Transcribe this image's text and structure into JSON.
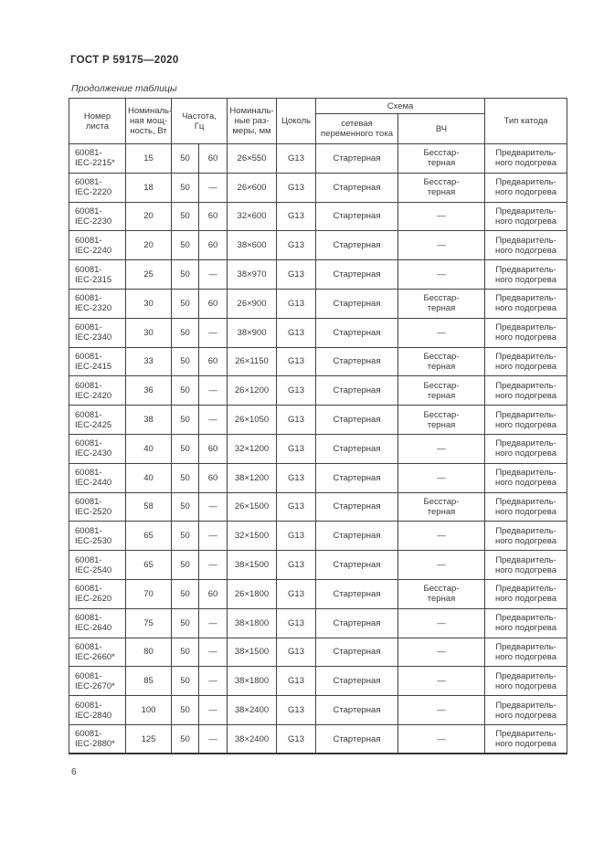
{
  "page": {
    "header_title": "ГОСТ Р 59175—2020",
    "table_caption": "Продолжение таблицы",
    "page_number": "6"
  },
  "table": {
    "headers": {
      "sheet_number": "Номер\nлиста",
      "power": "Номиналь-\nная мощ-\nность, Вт",
      "frequency": "Частота,\nГц",
      "dimensions": "Номиналь-\nные раз-\nмеры, мм",
      "cap": "Цоколь",
      "scheme": "Схема",
      "scheme_mains": "сетевая\nпеременного тока",
      "scheme_hf": "ВЧ",
      "cathode_type": "Тип катода"
    },
    "rows": [
      {
        "sheet": "60081-\nIEC-2215*",
        "power": "15",
        "f50": "50",
        "f60": "60",
        "dim": "26×550",
        "cap": "G13",
        "mains": "Стартерная",
        "hf": "Бесстар-\nтерная",
        "cathode": "Предваритель-\nного подогрева"
      },
      {
        "sheet": "60081-\nIEC-2220",
        "power": "18",
        "f50": "50",
        "f60": "—",
        "dim": "26×600",
        "cap": "G13",
        "mains": "Стартерная",
        "hf": "Бесстар-\nтерная",
        "cathode": "Предваритель-\nного подогрева"
      },
      {
        "sheet": "60081-\nIEC-2230",
        "power": "20",
        "f50": "50",
        "f60": "60",
        "dim": "32×600",
        "cap": "G13",
        "mains": "Стартерная",
        "hf": "—",
        "cathode": "Предваритель-\nного подогрева"
      },
      {
        "sheet": "60081-\nIEC-2240",
        "power": "20",
        "f50": "50",
        "f60": "60",
        "dim": "38×600",
        "cap": "G13",
        "mains": "Стартерная",
        "hf": "—",
        "cathode": "Предваритель-\nного подогрева"
      },
      {
        "sheet": "60081-\nIEC-2315",
        "power": "25",
        "f50": "50",
        "f60": "—",
        "dim": "38×970",
        "cap": "G13",
        "mains": "Стартерная",
        "hf": "—",
        "cathode": "Предваритель-\nного подогрева"
      },
      {
        "sheet": "60081-\nIEC-2320",
        "power": "30",
        "f50": "50",
        "f60": "60",
        "dim": "26×900",
        "cap": "G13",
        "mains": "Стартерная",
        "hf": "Бесстар-\nтерная",
        "cathode": "Предваритель-\nного подогрева"
      },
      {
        "sheet": "60081-\nIEC-2340",
        "power": "30",
        "f50": "50",
        "f60": "—",
        "dim": "38×900",
        "cap": "G13",
        "mains": "Стартерная",
        "hf": "—",
        "cathode": "Предваритель-\nного подогрева"
      },
      {
        "sheet": "60081-\nIEC-2415",
        "power": "33",
        "f50": "50",
        "f60": "60",
        "dim": "26×1150",
        "cap": "G13",
        "mains": "Стартерная",
        "hf": "Бесстар-\nтерная",
        "cathode": "Предваритель-\nного подогрева"
      },
      {
        "sheet": "60081-\nIEC-2420",
        "power": "36",
        "f50": "50",
        "f60": "—",
        "dim": "26×1200",
        "cap": "G13",
        "mains": "Стартерная",
        "hf": "Бесстар-\nтерная",
        "cathode": "Предваритель-\nного подогрева"
      },
      {
        "sheet": "60081-\nIEC-2425",
        "power": "38",
        "f50": "50",
        "f60": "—",
        "dim": "26×1050",
        "cap": "G13",
        "mains": "Стартерная",
        "hf": "Бесстар-\nтерная",
        "cathode": "Предваритель-\nного подогрева"
      },
      {
        "sheet": "60081-\nIEC-2430",
        "power": "40",
        "f50": "50",
        "f60": "60",
        "dim": "32×1200",
        "cap": "G13",
        "mains": "Стартерная",
        "hf": "—",
        "cathode": "Предваритель-\nного подогрева"
      },
      {
        "sheet": "60081-\nIEC-2440",
        "power": "40",
        "f50": "50",
        "f60": "60",
        "dim": "38×1200",
        "cap": "G13",
        "mains": "Стартерная",
        "hf": "—",
        "cathode": "Предваритель-\nного подогрева"
      },
      {
        "sheet": "60081-\nIEC-2520",
        "power": "58",
        "f50": "50",
        "f60": "—",
        "dim": "26×1500",
        "cap": "G13",
        "mains": "Стартерная",
        "hf": "Бесстар-\nтерная",
        "cathode": "Предваритель-\nного подогрева"
      },
      {
        "sheet": "60081-\nIEC-2530",
        "power": "65",
        "f50": "50",
        "f60": "—",
        "dim": "32×1500",
        "cap": "G13",
        "mains": "Стартерная",
        "hf": "—",
        "cathode": "Предваритель-\nного подогрева"
      },
      {
        "sheet": "60081-\nIEC-2540",
        "power": "65",
        "f50": "50",
        "f60": "—",
        "dim": "38×1500",
        "cap": "G13",
        "mains": "Стартерная",
        "hf": "—",
        "cathode": "Предваритель-\nного подогрева"
      },
      {
        "sheet": "60081-\nIEC-2620",
        "power": "70",
        "f50": "50",
        "f60": "60",
        "dim": "26×1800",
        "cap": "G13",
        "mains": "Стартерная",
        "hf": "Бесстар-\nтерная",
        "cathode": "Предваритель-\nного подогрева"
      },
      {
        "sheet": "60081-\nIEC-2640",
        "power": "75",
        "f50": "50",
        "f60": "—",
        "dim": "38×1800",
        "cap": "G13",
        "mains": "Стартерная",
        "hf": "—",
        "cathode": "Предваритель-\nного подогрева"
      },
      {
        "sheet": "60081-\nIEC-2660*",
        "power": "80",
        "f50": "50",
        "f60": "—",
        "dim": "38×1500",
        "cap": "G13",
        "mains": "Стартерная",
        "hf": "—",
        "cathode": "Предваритель-\nного подогрева"
      },
      {
        "sheet": "60081-\nIEC-2670*",
        "power": "85",
        "f50": "50",
        "f60": "—",
        "dim": "38×1800",
        "cap": "G13",
        "mains": "Стартерная",
        "hf": "—",
        "cathode": "Предваритель-\nного подогрева"
      },
      {
        "sheet": "60081-\nIEC-2840",
        "power": "100",
        "f50": "50",
        "f60": "—",
        "dim": "38×2400",
        "cap": "G13",
        "mains": "Стартерная",
        "hf": "—",
        "cathode": "Предваритель-\nного подогрева"
      },
      {
        "sheet": "60081-\nIEC-2880*",
        "power": "125",
        "f50": "50",
        "f60": "—",
        "dim": "38×2400",
        "cap": "G13",
        "mains": "Стартерная",
        "hf": "—",
        "cathode": "Предваритель-\nного подогрева"
      }
    ]
  }
}
